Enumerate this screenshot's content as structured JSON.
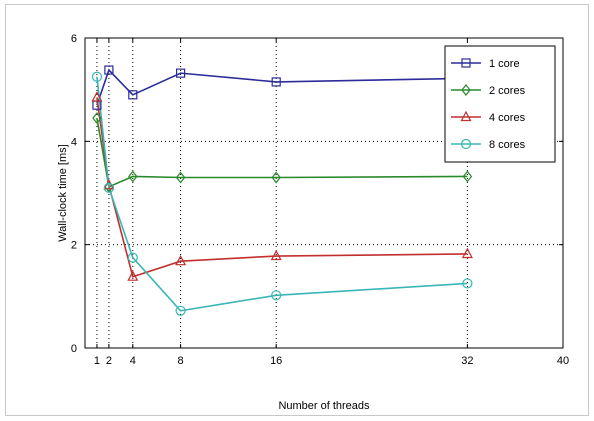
{
  "chart_data": {
    "type": "line",
    "title": "",
    "xlabel": "Number of threads",
    "ylabel": "Wall-clock time [ms]",
    "xlim": [
      0,
      40
    ],
    "ylim": [
      0,
      6
    ],
    "xticks": [
      1,
      2,
      4,
      8,
      16,
      32,
      40
    ],
    "yticks": [
      0,
      2,
      4,
      6
    ],
    "x": [
      1,
      2,
      4,
      8,
      16,
      32
    ],
    "grid": "dotted, at x ticks and y ticks",
    "legend_position": "top-right",
    "series": [
      {
        "name": "1 core",
        "values": [
          4.7,
          5.38,
          4.9,
          5.32,
          5.15,
          5.22
        ],
        "color": "#2b2b9a",
        "marker": "square"
      },
      {
        "name": "2 cores",
        "values": [
          4.45,
          3.12,
          3.32,
          3.3,
          3.3,
          3.32
        ],
        "color": "#2a8a2a",
        "marker": "diamond"
      },
      {
        "name": "4 cores",
        "values": [
          4.85,
          3.15,
          1.38,
          1.68,
          1.78,
          1.82
        ],
        "color": "#c22f2f",
        "marker": "triangle"
      },
      {
        "name": "8 cores",
        "values": [
          5.25,
          3.1,
          1.75,
          0.72,
          1.02,
          1.25
        ],
        "color": "#3ab6b6",
        "marker": "circle"
      }
    ]
  }
}
